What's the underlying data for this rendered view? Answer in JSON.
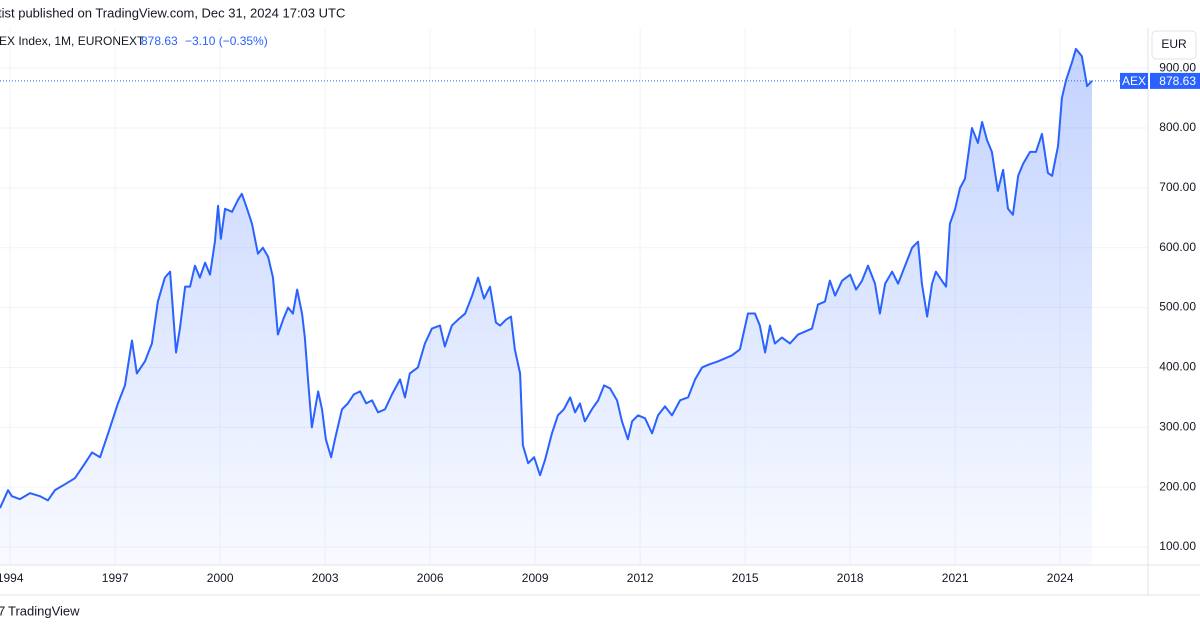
{
  "header": {
    "published": "tist published on TradingView.com, Dec 31, 2024 17:03 UTC",
    "symbol": "EX Index, 1M, EURONEXT",
    "price": "878.63",
    "change": "−3.10 (−0.35%)",
    "currency": "EUR",
    "tag": "AEX"
  },
  "footer": {
    "brand": "TradingView"
  },
  "chart_data": {
    "type": "area",
    "series": [
      {
        "name": "AEX",
        "color": "#2962ff",
        "x": [
          1993.71,
          1993.94,
          1994.05,
          1994.28,
          1994.57,
          1994.85,
          1995.08,
          1995.28,
          1995.57,
          1995.85,
          1996.14,
          1996.34,
          1996.57,
          1996.8,
          1997.08,
          1997.28,
          1997.48,
          1997.62,
          1997.85,
          1998.05,
          1998.22,
          1998.42,
          1998.57,
          1998.74,
          1998.85,
          1999.0,
          1999.14,
          1999.28,
          1999.42,
          1999.57,
          1999.71,
          1999.85,
          1999.94,
          2000.02,
          2000.14,
          2000.34,
          2000.51,
          2000.62,
          2000.77,
          2000.91,
          2001.08,
          2001.22,
          2001.37,
          2001.51,
          2001.65,
          2001.8,
          2001.94,
          2002.08,
          2002.2,
          2002.34,
          2002.42,
          2002.51,
          2002.62,
          2002.8,
          2002.91,
          2003.02,
          2003.17,
          2003.28,
          2003.48,
          2003.65,
          2003.82,
          2004.0,
          2004.17,
          2004.34,
          2004.51,
          2004.71,
          2004.91,
          2005.14,
          2005.28,
          2005.42,
          2005.65,
          2005.85,
          2006.05,
          2006.28,
          2006.42,
          2006.62,
          2006.8,
          2007.0,
          2007.2,
          2007.37,
          2007.54,
          2007.71,
          2007.88,
          2008.0,
          2008.17,
          2008.31,
          2008.42,
          2008.57,
          2008.65,
          2008.8,
          2008.97,
          2009.14,
          2009.28,
          2009.48,
          2009.65,
          2009.82,
          2010.0,
          2010.14,
          2010.28,
          2010.42,
          2010.62,
          2010.8,
          2010.97,
          2011.14,
          2011.34,
          2011.48,
          2011.65,
          2011.77,
          2011.94,
          2012.14,
          2012.34,
          2012.51,
          2012.71,
          2012.91,
          2013.14,
          2013.37,
          2013.57,
          2013.77,
          2013.97,
          2014.22,
          2014.42,
          2014.62,
          2014.85,
          2015.08,
          2015.28,
          2015.42,
          2015.57,
          2015.71,
          2015.85,
          2016.05,
          2016.28,
          2016.51,
          2016.71,
          2016.91,
          2017.08,
          2017.28,
          2017.42,
          2017.57,
          2017.77,
          2018.0,
          2018.17,
          2018.34,
          2018.51,
          2018.71,
          2018.85,
          2019.0,
          2019.2,
          2019.37,
          2019.57,
          2019.77,
          2019.94,
          2020.05,
          2020.2,
          2020.34,
          2020.45,
          2020.62,
          2020.74,
          2020.85,
          2021.0,
          2021.14,
          2021.28,
          2021.48,
          2021.65,
          2021.77,
          2021.91,
          2022.05,
          2022.22,
          2022.37,
          2022.51,
          2022.65,
          2022.8,
          2022.94,
          2023.14,
          2023.31,
          2023.48,
          2023.65,
          2023.77,
          2023.94,
          2024.05,
          2024.17,
          2024.34,
          2024.45,
          2024.62,
          2024.77,
          2024.91
        ],
        "values": [
          165,
          195,
          185,
          180,
          190,
          185,
          178,
          195,
          205,
          215,
          240,
          258,
          250,
          290,
          340,
          370,
          445,
          390,
          410,
          440,
          510,
          550,
          560,
          425,
          465,
          535,
          535,
          570,
          550,
          575,
          555,
          610,
          670,
          615,
          665,
          660,
          680,
          690,
          665,
          640,
          590,
          600,
          585,
          550,
          455,
          480,
          500,
          490,
          530,
          490,
          450,
          380,
          300,
          360,
          330,
          280,
          250,
          280,
          330,
          340,
          355,
          360,
          340,
          345,
          325,
          330,
          355,
          380,
          350,
          390,
          400,
          440,
          465,
          470,
          435,
          470,
          480,
          490,
          520,
          550,
          515,
          535,
          475,
          470,
          480,
          485,
          430,
          390,
          270,
          240,
          250,
          220,
          245,
          290,
          320,
          330,
          350,
          325,
          340,
          310,
          330,
          345,
          370,
          365,
          345,
          310,
          280,
          310,
          320,
          315,
          290,
          320,
          335,
          320,
          345,
          350,
          380,
          400,
          405,
          410,
          415,
          420,
          430,
          490,
          490,
          470,
          425,
          470,
          440,
          450,
          440,
          455,
          460,
          465,
          505,
          510,
          545,
          520,
          545,
          555,
          530,
          545,
          570,
          540,
          490,
          540,
          560,
          540,
          570,
          600,
          610,
          540,
          485,
          540,
          560,
          545,
          535,
          640,
          665,
          700,
          715,
          800,
          775,
          810,
          780,
          760,
          695,
          730,
          665,
          655,
          720,
          740,
          760,
          760,
          790,
          725,
          720,
          770,
          850,
          880,
          910,
          932,
          920,
          870,
          878.63
        ]
      }
    ],
    "xlim": [
      1993.71,
      2026.51
    ],
    "xticks": [
      1994,
      1997,
      2000,
      2003,
      2006,
      2009,
      2012,
      2015,
      2018,
      2021,
      2024
    ],
    "ylim": [
      70,
      967
    ],
    "yticks": [
      {
        "value": 100,
        "label": "100.00"
      },
      {
        "value": 200,
        "label": "200.00"
      },
      {
        "value": 300,
        "label": "300.00"
      },
      {
        "value": 400,
        "label": "400.00"
      },
      {
        "value": 500,
        "label": "500.00"
      },
      {
        "value": 600,
        "label": "600.00"
      },
      {
        "value": 700,
        "label": "700.00"
      },
      {
        "value": 800,
        "label": "800.00"
      },
      {
        "value": 900,
        "label": "900.00"
      }
    ],
    "grid": true
  }
}
